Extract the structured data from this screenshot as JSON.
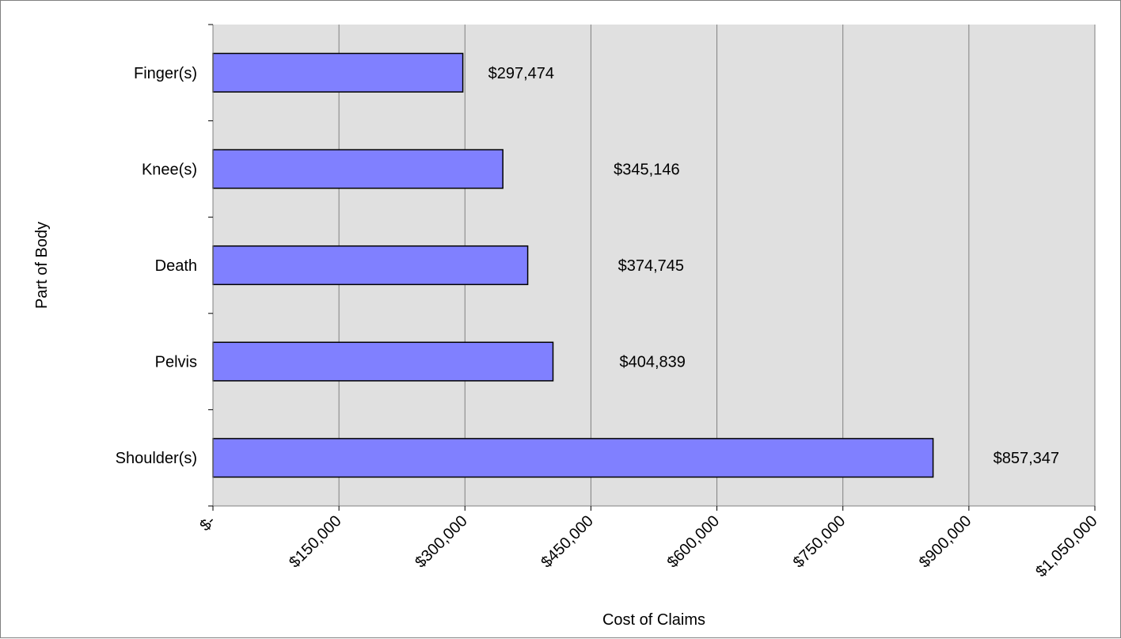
{
  "chart_data": {
    "type": "bar",
    "orientation": "horizontal",
    "xlabel": "Cost of Claims",
    "ylabel": "Part of Body",
    "categories": [
      "Finger(s)",
      "Knee(s)",
      "Death",
      "Pelvis",
      "Shoulder(s)"
    ],
    "values": [
      297474,
      345146,
      374745,
      404839,
      857347
    ],
    "data_labels": [
      "$297,474",
      "$345,146",
      "$374,745",
      "$404,839",
      "$857,347"
    ],
    "xlim": [
      0,
      1050000
    ],
    "x_ticks": [
      0,
      150000,
      300000,
      450000,
      600000,
      750000,
      900000,
      1050000
    ],
    "x_tick_labels": [
      "$-",
      "$150,000",
      "$300,000",
      "$450,000",
      "$600,000",
      "$750,000",
      "$900,000",
      "$1,050,000"
    ],
    "grid": true,
    "legend": "none",
    "colors": {
      "bar_fill": "#8080ff",
      "bar_stroke": "#000000",
      "plot_background": "#e0e0e0",
      "gridline": "#808080"
    }
  }
}
